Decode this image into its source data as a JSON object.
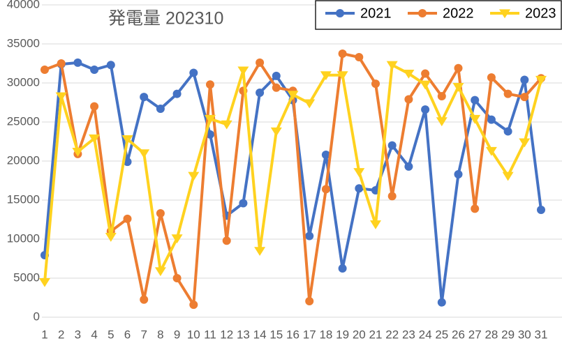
{
  "chart_data": {
    "type": "line",
    "title": "発電量 202310",
    "categories": [
      "1",
      "2",
      "3",
      "4",
      "5",
      "6",
      "7",
      "8",
      "9",
      "10",
      "11",
      "12",
      "13",
      "14",
      "15",
      "16",
      "17",
      "18",
      "19",
      "20",
      "21",
      "22",
      "23",
      "24",
      "25",
      "26",
      "27",
      "28",
      "29",
      "30",
      "31"
    ],
    "series": [
      {
        "name": "2021",
        "color": "#4472c4",
        "marker": "circle",
        "values": [
          7950,
          32400,
          32600,
          31700,
          32300,
          19900,
          28200,
          26700,
          28600,
          31300,
          23400,
          13000,
          14600,
          28750,
          30900,
          27800,
          10400,
          20800,
          6250,
          16500,
          16250,
          22000,
          19300,
          26600,
          1900,
          18300,
          27800,
          25300,
          23800,
          30400,
          13750
        ]
      },
      {
        "name": "2022",
        "color": "#ed7d31",
        "marker": "circle",
        "values": [
          31700,
          32500,
          20900,
          27000,
          11000,
          12600,
          2250,
          13300,
          5000,
          1600,
          29800,
          9800,
          29000,
          32600,
          29400,
          29000,
          2050,
          16400,
          33750,
          33300,
          29900,
          15500,
          27900,
          31200,
          28300,
          31900,
          13900,
          30700,
          28600,
          28200,
          30600
        ]
      },
      {
        "name": "2023",
        "color": "#ffd21f",
        "marker": "triangle-down",
        "values": [
          4500,
          28300,
          21200,
          22900,
          10300,
          22800,
          21000,
          5900,
          10100,
          18100,
          25400,
          24700,
          31600,
          8500,
          23800,
          28500,
          27400,
          31000,
          31000,
          18600,
          11900,
          32300,
          31200,
          29800,
          25100,
          29500,
          25400,
          21300,
          18100,
          22400,
          30400
        ]
      }
    ],
    "ylim": [
      0,
      40000
    ],
    "yticks": [
      0,
      5000,
      10000,
      15000,
      20000,
      25000,
      30000,
      35000,
      40000
    ],
    "grid": true,
    "legend": "top-right"
  }
}
